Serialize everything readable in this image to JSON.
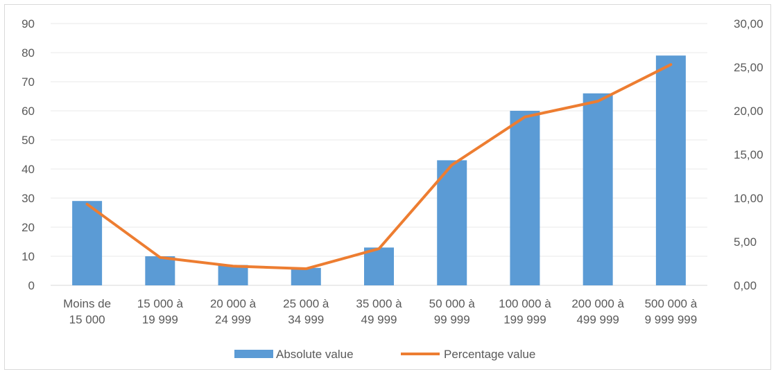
{
  "chart_data": {
    "type": "bar",
    "categories": [
      [
        "Moins de",
        "15 000"
      ],
      [
        "15 000 à",
        "19 999"
      ],
      [
        "20 000 à",
        "24 999"
      ],
      [
        "25 000 à",
        "34 999"
      ],
      [
        "35 000 à",
        "49 999"
      ],
      [
        "50 000 à",
        "99 999"
      ],
      [
        "100 000 à",
        "199 999"
      ],
      [
        "200 000 à",
        "499 999"
      ],
      [
        "500 000 à",
        "9 999 999"
      ]
    ],
    "series": [
      {
        "name": "Absolute value",
        "kind": "bar",
        "axis": "left",
        "color": "#5b9bd5",
        "values": [
          29,
          10,
          7,
          6,
          13,
          43,
          60,
          66,
          79
        ]
      },
      {
        "name": "Percentage value",
        "kind": "line",
        "axis": "right",
        "color": "#ed7d31",
        "values": [
          9.3,
          3.2,
          2.2,
          1.9,
          4.2,
          13.8,
          19.3,
          21.1,
          25.3
        ]
      }
    ],
    "y_left": {
      "min": 0,
      "max": 90,
      "ticks": [
        "0",
        "10",
        "20",
        "30",
        "40",
        "50",
        "60",
        "70",
        "80",
        "90"
      ]
    },
    "y_right": {
      "min": 0,
      "max": 30,
      "ticks": [
        "0,00",
        "5,00",
        "10,00",
        "15,00",
        "20,00",
        "25,00",
        "30,00"
      ]
    },
    "grid": true,
    "legend": "bottom"
  }
}
